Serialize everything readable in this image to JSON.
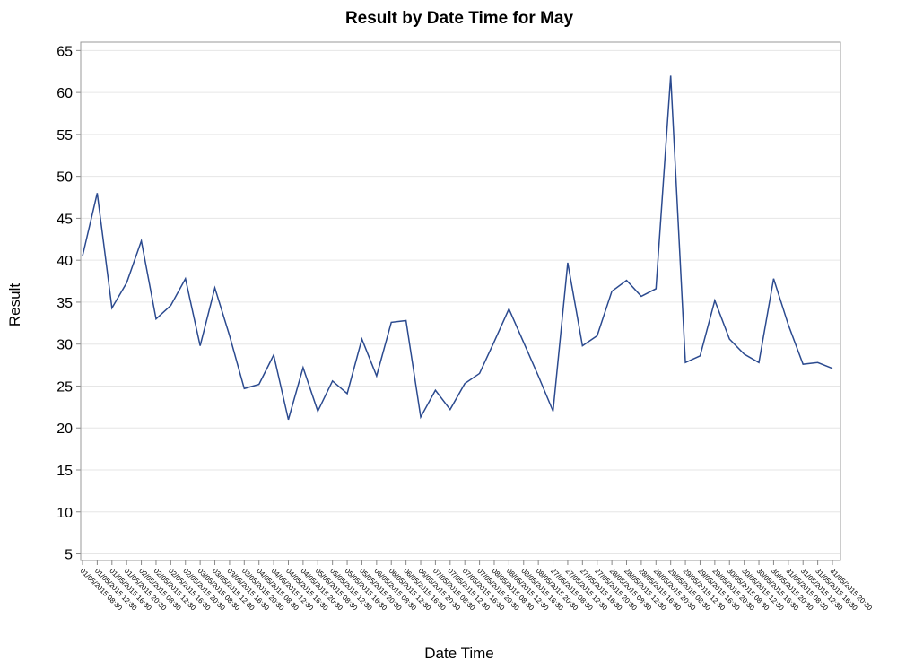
{
  "chart_data": {
    "type": "line",
    "title": "Result by Date Time for May",
    "x_label": "Date Time",
    "y_label": "Result",
    "categories": [
      "01/05/2015 08:30",
      "01/05/2015 12:30",
      "01/05/2015 16:30",
      "01/05/2015 20:30",
      "02/05/2015 08:30",
      "02/05/2015 12:30",
      "02/05/2015 16:30",
      "02/05/2015 20:30",
      "03/05/2015 08:30",
      "03/05/2015 12:30",
      "03/05/2015 16:30",
      "03/05/2015 20:30",
      "04/05/2015 08:30",
      "04/05/2015 12:30",
      "04/05/2015 16:30",
      "04/05/2015 20:30",
      "05/05/2015 08:30",
      "05/05/2015 12:30",
      "05/05/2015 16:30",
      "05/05/2015 20:30",
      "06/05/2015 08:30",
      "06/05/2015 12:30",
      "06/05/2015 16:30",
      "06/05/2015 20:30",
      "07/05/2015 08:30",
      "07/05/2015 12:30",
      "07/05/2015 16:30",
      "07/05/2015 20:30",
      "08/05/2015 08:30",
      "08/05/2015 12:30",
      "08/05/2015 16:30",
      "08/05/2015 20:30",
      "27/05/2015 08:30",
      "27/05/2015 12:30",
      "27/05/2015 16:30",
      "27/05/2015 20:30",
      "28/05/2015 08:30",
      "28/05/2015 12:30",
      "28/05/2015 16:30",
      "28/05/2015 20:30",
      "29/05/2015 08:30",
      "29/05/2015 12:30",
      "29/05/2015 16:30",
      "29/05/2015 20:30",
      "30/05/2015 08:30",
      "30/05/2015 12:30",
      "30/05/2015 16:30",
      "30/05/2015 20:30",
      "31/05/2015 08:30",
      "31/05/2015 12:30",
      "31/05/2015 16:30",
      "31/05/2015 20:30"
    ],
    "series": [
      {
        "name": "Result",
        "color": "#2b4a8f",
        "values": [
          40.5,
          48,
          34.3,
          37.3,
          42.3,
          33,
          34.6,
          37.8,
          29.8,
          36.7,
          31,
          24.7,
          25.2,
          28.7,
          21,
          27.2,
          22,
          25.6,
          24.1,
          30.6,
          26.2,
          32.6,
          32.8,
          21.3,
          24.5,
          22.2,
          25.3,
          26.5,
          30.3,
          34.2,
          30.2,
          26.2,
          22,
          39.7,
          29.8,
          31,
          36.3,
          37.6,
          35.7,
          36.6,
          62,
          27.8,
          28.6,
          35.2,
          30.6,
          28.8,
          27.8,
          37.8,
          32.3,
          27.6,
          27.8,
          27.1
        ]
      }
    ],
    "ylim": [
      4.2,
      66
    ],
    "yticks": [
      5,
      10,
      15,
      20,
      25,
      30,
      35,
      40,
      45,
      50,
      55,
      60,
      65
    ],
    "grid": true
  }
}
